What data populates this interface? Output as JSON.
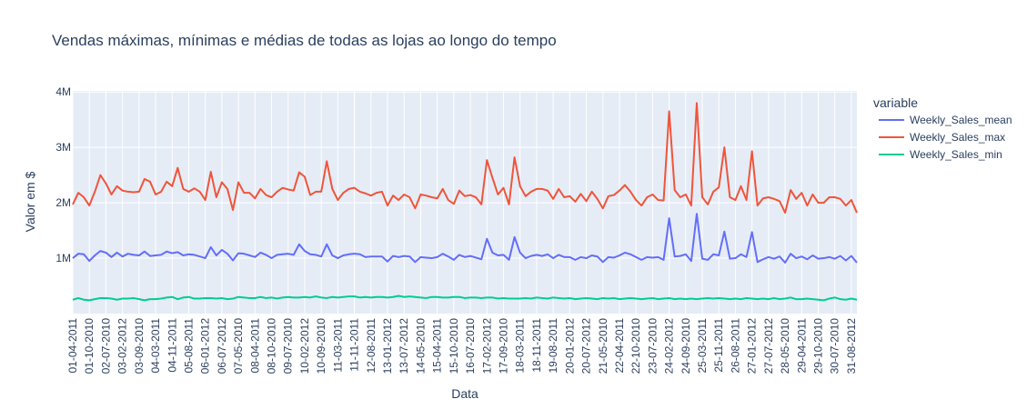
{
  "chart_data": {
    "type": "line",
    "title": "Vendas máximas, mínimas e médias de todas as lojas ao longo do tempo",
    "x_label": "Data",
    "y_label": "Valor em $",
    "legend_title": "variable",
    "categories": [
      "01-04-2011",
      null,
      null,
      "01-10-2010",
      null,
      null,
      "02-07-2010",
      null,
      null,
      "03-02-2012",
      null,
      null,
      "03-09-2010",
      null,
      null,
      "04-03-2011",
      null,
      null,
      "04-11-2011",
      null,
      null,
      "05-08-2011",
      null,
      null,
      "06-01-2012",
      null,
      null,
      "06-07-2012",
      null,
      null,
      "07-05-2010",
      null,
      null,
      "08-04-2011",
      null,
      null,
      "08-10-2010",
      null,
      null,
      "09-07-2010",
      null,
      null,
      "10-02-2012",
      null,
      null,
      "10-09-2010",
      null,
      null,
      "11-03-2011",
      null,
      null,
      "11-11-2011",
      null,
      null,
      "12-08-2011",
      null,
      null,
      "13-01-2012",
      null,
      null,
      "13-07-2012",
      null,
      null,
      "14-05-2010",
      null,
      null,
      "15-04-2011",
      null,
      null,
      "15-10-2010",
      null,
      null,
      "16-07-2010",
      null,
      null,
      "17-02-2012",
      null,
      null,
      "17-09-2010",
      null,
      null,
      "18-03-2011",
      null,
      null,
      "18-11-2011",
      null,
      null,
      "19-08-2011",
      null,
      null,
      "20-01-2012",
      null,
      null,
      "20-07-2012",
      null,
      null,
      "21-05-2010",
      null,
      null,
      "22-04-2011",
      null,
      null,
      "22-10-2010",
      null,
      null,
      "23-07-2010",
      null,
      null,
      "24-02-2012",
      null,
      null,
      "24-09-2010",
      null,
      null,
      "25-03-2011",
      null,
      null,
      "25-11-2011",
      null,
      null,
      "26-08-2011",
      null,
      null,
      "27-01-2012",
      null,
      null,
      "27-07-2012",
      null,
      null,
      "28-05-2010",
      null,
      null,
      "29-04-2011",
      null,
      null,
      "29-10-2010",
      null,
      null,
      "30-07-2010",
      null,
      null,
      "31-08-2012",
      null
    ],
    "series": [
      {
        "name": "Weekly_Sales_mean",
        "color": "#636efa",
        "values": [
          1000000.0,
          1080000.0,
          1070000.0,
          950000.0,
          1050000.0,
          1130000.0,
          1100000.0,
          1020000.0,
          1100000.0,
          1030000.0,
          1080000.0,
          1060000.0,
          1050000.0,
          1120000.0,
          1040000.0,
          1050000.0,
          1060000.0,
          1120000.0,
          1090000.0,
          1110000.0,
          1050000.0,
          1070000.0,
          1060000.0,
          1030000.0,
          1000000.0,
          1200000.0,
          1050000.0,
          1150000.0,
          1080000.0,
          960000.0,
          1090000.0,
          1080000.0,
          1050000.0,
          1020000.0,
          1100000.0,
          1060000.0,
          1000000.0,
          1060000.0,
          1070000.0,
          1080000.0,
          1060000.0,
          1250000.0,
          1130000.0,
          1070000.0,
          1060000.0,
          1030000.0,
          1250000.0,
          1050000.0,
          1000000.0,
          1050000.0,
          1070000.0,
          1080000.0,
          1070000.0,
          1020000.0,
          1030000.0,
          1030000.0,
          1030000.0,
          940000.0,
          1040000.0,
          1020000.0,
          1040000.0,
          1030000.0,
          930000.0,
          1020000.0,
          1010000.0,
          1000000.0,
          1020000.0,
          1080000.0,
          1030000.0,
          970000.0,
          1060000.0,
          1020000.0,
          1040000.0,
          1010000.0,
          980000.0,
          1350000.0,
          1100000.0,
          1050000.0,
          1060000.0,
          970000.0,
          1380000.0,
          1100000.0,
          1000000.0,
          1040000.0,
          1060000.0,
          1040000.0,
          1070000.0,
          1000000.0,
          1060000.0,
          1020000.0,
          1020000.0,
          970000.0,
          1020000.0,
          1000000.0,
          1050000.0,
          1030000.0,
          930000.0,
          1020000.0,
          1010000.0,
          1050000.0,
          1100000.0,
          1070000.0,
          1020000.0,
          970000.0,
          1020000.0,
          1010000.0,
          1020000.0,
          970000.0,
          1720000.0,
          1030000.0,
          1040000.0,
          1070000.0,
          950000.0,
          1800000.0,
          990000.0,
          970000.0,
          1070000.0,
          1050000.0,
          1480000.0,
          990000.0,
          1000000.0,
          1070000.0,
          1020000.0,
          1470000.0,
          930000.0,
          980000.0,
          1020000.0,
          990000.0,
          1030000.0,
          920000.0,
          1080000.0,
          1000000.0,
          1030000.0,
          980000.0,
          1050000.0,
          990000.0,
          1000000.0,
          1020000.0,
          990000.0,
          1040000.0,
          960000.0,
          1040000.0,
          920000.0
        ]
      },
      {
        "name": "Weekly_Sales_max",
        "color": "#ef553b",
        "values": [
          1970000.0,
          2180000.0,
          2100000.0,
          1950000.0,
          2200000.0,
          2500000.0,
          2350000.0,
          2150000.0,
          2300000.0,
          2220000.0,
          2200000.0,
          2190000.0,
          2200000.0,
          2430000.0,
          2380000.0,
          2150000.0,
          2200000.0,
          2380000.0,
          2300000.0,
          2630000.0,
          2250000.0,
          2200000.0,
          2260000.0,
          2200000.0,
          2050000.0,
          2560000.0,
          2100000.0,
          2370000.0,
          2250000.0,
          1870000.0,
          2370000.0,
          2180000.0,
          2180000.0,
          2080000.0,
          2250000.0,
          2140000.0,
          2100000.0,
          2200000.0,
          2270000.0,
          2240000.0,
          2220000.0,
          2550000.0,
          2470000.0,
          2140000.0,
          2200000.0,
          2200000.0,
          2750000.0,
          2250000.0,
          2050000.0,
          2180000.0,
          2250000.0,
          2270000.0,
          2200000.0,
          2170000.0,
          2130000.0,
          2180000.0,
          2200000.0,
          1950000.0,
          2130000.0,
          2050000.0,
          2150000.0,
          2100000.0,
          1900000.0,
          2150000.0,
          2130000.0,
          2100000.0,
          2080000.0,
          2250000.0,
          2050000.0,
          1980000.0,
          2220000.0,
          2120000.0,
          2140000.0,
          2100000.0,
          1970000.0,
          2770000.0,
          2450000.0,
          2150000.0,
          2270000.0,
          1970000.0,
          2820000.0,
          2300000.0,
          2120000.0,
          2200000.0,
          2250000.0,
          2250000.0,
          2220000.0,
          2070000.0,
          2250000.0,
          2100000.0,
          2120000.0,
          2020000.0,
          2160000.0,
          2030000.0,
          2200000.0,
          2070000.0,
          1900000.0,
          2120000.0,
          2140000.0,
          2220000.0,
          2320000.0,
          2200000.0,
          2050000.0,
          1950000.0,
          2100000.0,
          2150000.0,
          2050000.0,
          2040000.0,
          3650000.0,
          2230000.0,
          2100000.0,
          2150000.0,
          1950000.0,
          3800000.0,
          2100000.0,
          1970000.0,
          2200000.0,
          2280000.0,
          3000000.0,
          2100000.0,
          2050000.0,
          2300000.0,
          2050000.0,
          2930000.0,
          1950000.0,
          2080000.0,
          2100000.0,
          2070000.0,
          2030000.0,
          1820000.0,
          2230000.0,
          2070000.0,
          2180000.0,
          1950000.0,
          2150000.0,
          2000000.0,
          2000000.0,
          2100000.0,
          2100000.0,
          2070000.0,
          1950000.0,
          2050000.0,
          1820000.0
        ]
      },
      {
        "name": "Weekly_Sales_min",
        "color": "#00cc96",
        "values": [
          250000.0,
          280000.0,
          250000.0,
          240000.0,
          260000.0,
          280000.0,
          280000.0,
          270000.0,
          250000.0,
          270000.0,
          270000.0,
          280000.0,
          260000.0,
          240000.0,
          260000.0,
          260000.0,
          270000.0,
          290000.0,
          300000.0,
          260000.0,
          290000.0,
          300000.0,
          270000.0,
          270000.0,
          280000.0,
          280000.0,
          270000.0,
          280000.0,
          260000.0,
          270000.0,
          300000.0,
          290000.0,
          280000.0,
          280000.0,
          300000.0,
          280000.0,
          290000.0,
          270000.0,
          290000.0,
          300000.0,
          290000.0,
          290000.0,
          300000.0,
          290000.0,
          310000.0,
          290000.0,
          280000.0,
          300000.0,
          290000.0,
          300000.0,
          310000.0,
          310000.0,
          290000.0,
          300000.0,
          290000.0,
          300000.0,
          300000.0,
          290000.0,
          300000.0,
          320000.0,
          300000.0,
          310000.0,
          300000.0,
          290000.0,
          280000.0,
          300000.0,
          300000.0,
          290000.0,
          290000.0,
          300000.0,
          300000.0,
          280000.0,
          290000.0,
          290000.0,
          280000.0,
          290000.0,
          290000.0,
          270000.0,
          280000.0,
          270000.0,
          270000.0,
          270000.0,
          280000.0,
          270000.0,
          290000.0,
          280000.0,
          270000.0,
          290000.0,
          280000.0,
          270000.0,
          280000.0,
          260000.0,
          270000.0,
          280000.0,
          270000.0,
          260000.0,
          280000.0,
          270000.0,
          280000.0,
          260000.0,
          270000.0,
          280000.0,
          270000.0,
          260000.0,
          270000.0,
          280000.0,
          260000.0,
          270000.0,
          280000.0,
          260000.0,
          270000.0,
          260000.0,
          270000.0,
          260000.0,
          270000.0,
          280000.0,
          270000.0,
          280000.0,
          270000.0,
          260000.0,
          270000.0,
          260000.0,
          280000.0,
          270000.0,
          260000.0,
          270000.0,
          260000.0,
          280000.0,
          260000.0,
          270000.0,
          290000.0,
          260000.0,
          260000.0,
          270000.0,
          260000.0,
          250000.0,
          240000.0,
          270000.0,
          290000.0,
          260000.0,
          250000.0,
          270000.0,
          250000.0
        ]
      }
    ],
    "ylim": [
      0,
      4020000
    ],
    "yticks": [
      {
        "value": 1000000,
        "label": "1M"
      },
      {
        "value": 2000000,
        "label": "2M"
      },
      {
        "value": 3000000,
        "label": "3M"
      },
      {
        "value": 4000000,
        "label": "4M"
      }
    ],
    "grid": true,
    "legend": "right"
  }
}
